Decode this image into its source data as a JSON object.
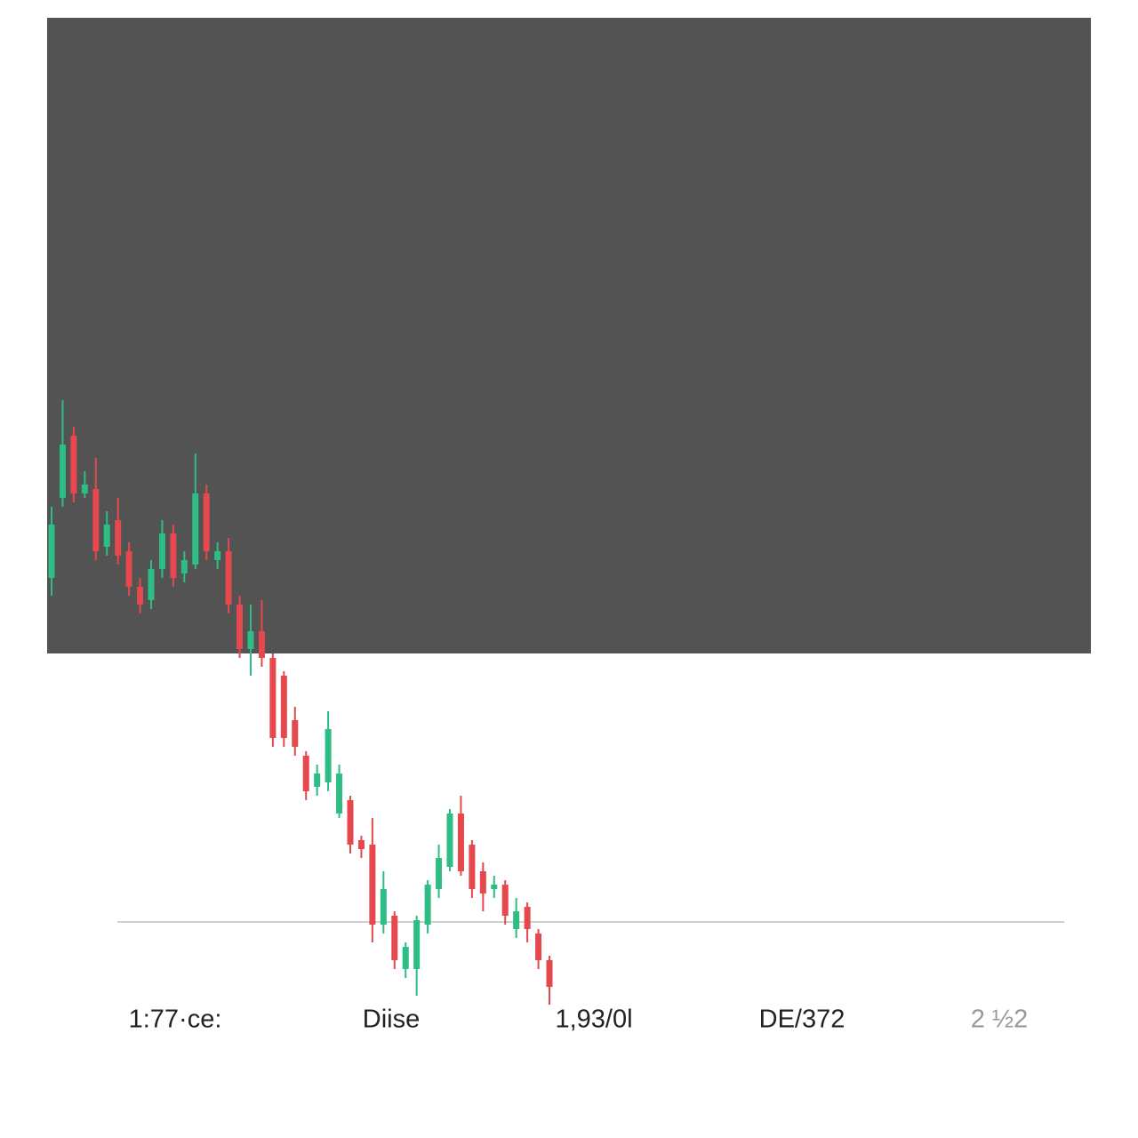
{
  "chart_data": {
    "type": "candlestick",
    "open": [
      63,
      72,
      79,
      72.5,
      73,
      66.5,
      69.5,
      66,
      62,
      60.5,
      64,
      68,
      63.5,
      64.5,
      72.5,
      65,
      66,
      60,
      55,
      57,
      54,
      52,
      47,
      43,
      39.5,
      40,
      36.5,
      38,
      33.5,
      33,
      24,
      25,
      19,
      19,
      24,
      28,
      30.5,
      36.5,
      33,
      30,
      28,
      28.5,
      23.5,
      26,
      23,
      20
    ],
    "high": [
      71,
      83,
      80,
      75,
      76.5,
      70.5,
      72,
      67,
      63,
      65,
      69.5,
      69,
      66,
      77,
      73.5,
      67,
      67.5,
      61,
      60,
      60.5,
      54.5,
      52.5,
      48.5,
      43.5,
      42,
      48,
      42,
      38.5,
      34,
      36,
      30,
      25.5,
      22,
      25,
      29,
      33,
      37,
      38.5,
      33.5,
      31,
      29.5,
      29,
      27,
      26.5,
      23.5,
      20.5
    ],
    "low": [
      61,
      71,
      71.5,
      72,
      65,
      65.5,
      64.5,
      61,
      59,
      59.5,
      63,
      62,
      62.5,
      64,
      65,
      64,
      59,
      54,
      52,
      53,
      44,
      44,
      43,
      38,
      38.5,
      39,
      36,
      32,
      31.5,
      22,
      23,
      19,
      18,
      16,
      23,
      27,
      30,
      29.5,
      27,
      25.5,
      27,
      24,
      22.5,
      22,
      19,
      15
    ],
    "close": [
      69,
      78,
      72.5,
      73.5,
      66,
      69,
      65.5,
      62,
      60,
      64,
      68,
      63,
      65,
      72.5,
      66,
      66,
      60,
      55,
      57,
      54,
      45,
      45,
      44,
      39,
      41,
      46,
      41,
      33,
      32.5,
      24,
      28,
      20,
      21.5,
      24.5,
      28.5,
      31.5,
      36.5,
      30,
      28,
      27.5,
      28.5,
      25,
      25.5,
      23.5,
      20,
      17
    ],
    "up_color": "#2ebd85",
    "down_color": "#e5484d",
    "ylim": [
      0,
      128
    ],
    "reference_line": 24.3,
    "labels": [
      "1:77·ce:",
      "Diise",
      "1,93/0l",
      "DE/372",
      "2 ½2"
    ]
  }
}
